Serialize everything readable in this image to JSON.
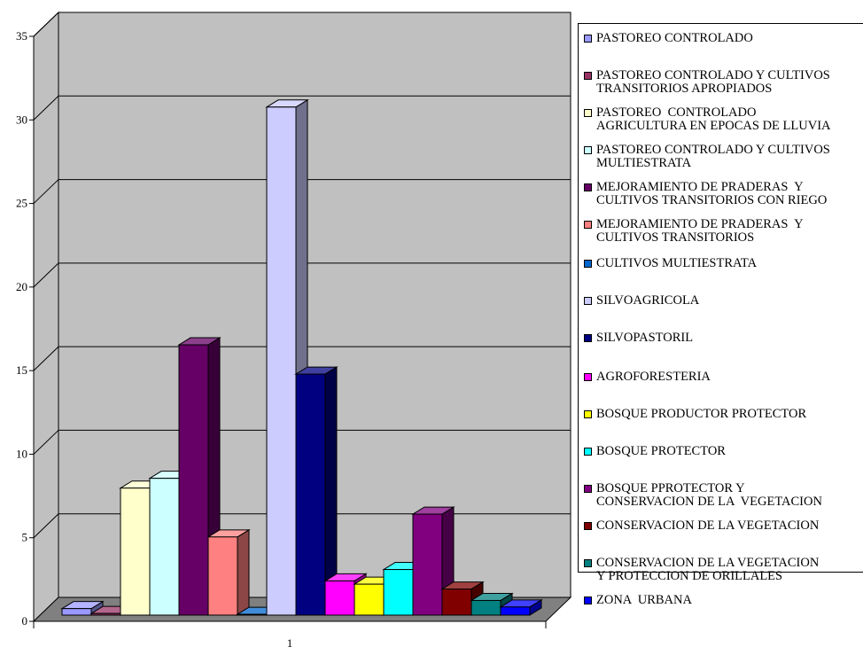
{
  "chart_data": {
    "type": "bar",
    "categories": [
      "1"
    ],
    "yticks": [
      "0",
      "5",
      "10",
      "15",
      "20",
      "25",
      "30",
      "35"
    ],
    "ylim": [
      0,
      35
    ],
    "grid": true,
    "legend_position": "right",
    "series": [
      {
        "name": "PASTOREO CONTROLADO",
        "values": [
          0.4
        ],
        "color": "#9999FF"
      },
      {
        "name": "PASTOREO CONTROLADO Y CULTIVOS\nTRANSITORIOS APROPIADOS",
        "values": [
          0.1
        ],
        "color": "#993366"
      },
      {
        "name": "PASTOREO  CONTROLADO\nAGRICULTURA EN EPOCAS DE LLUVIA",
        "values": [
          7.8
        ],
        "color": "#FFFFCC"
      },
      {
        "name": "PASTOREO CONTROLADO Y CULTIVOS\nMULTIESTRATA",
        "values": [
          8.4
        ],
        "color": "#CCFFFF"
      },
      {
        "name": "MEJORAMIENTO DE PRADERAS  Y\nCULTIVOS TRANSITORIOS CON RIEGO",
        "values": [
          16.6
        ],
        "color": "#660066"
      },
      {
        "name": "MEJORAMIENTO DE PRADERAS  Y\nCULTIVOS TRANSITORIOS",
        "values": [
          4.8
        ],
        "color": "#FF8080"
      },
      {
        "name": "CULTIVOS MULTIESTRATA",
        "values": [
          0.05
        ],
        "color": "#0066CC"
      },
      {
        "name": "SILVOAGRICOLA",
        "values": [
          31.2
        ],
        "color": "#CCCCFF"
      },
      {
        "name": "SILVOPASTORIL",
        "values": [
          14.8
        ],
        "color": "#000080"
      },
      {
        "name": "AGROFORESTERIA",
        "values": [
          2.1
        ],
        "color": "#FF00FF"
      },
      {
        "name": "BOSQUE PRODUCTOR PROTECTOR",
        "values": [
          1.9
        ],
        "color": "#FFFF00"
      },
      {
        "name": "BOSQUE PROTECTOR",
        "values": [
          2.8
        ],
        "color": "#00FFFF"
      },
      {
        "name": "BOSQUE PPROTECTOR Y\nCONSERVACION DE LA  VEGETACION",
        "values": [
          6.2
        ],
        "color": "#800080"
      },
      {
        "name": "CONSERVACION DE LA VEGETACION",
        "values": [
          1.6
        ],
        "color": "#800000"
      },
      {
        "name": "CONSERVACION DE LA VEGETACION\nY PROTECCION DE ORILLALES",
        "values": [
          0.9
        ],
        "color": "#008080"
      },
      {
        "name": "ZONA  URBANA",
        "values": [
          0.5
        ],
        "color": "#0000FF"
      }
    ]
  }
}
